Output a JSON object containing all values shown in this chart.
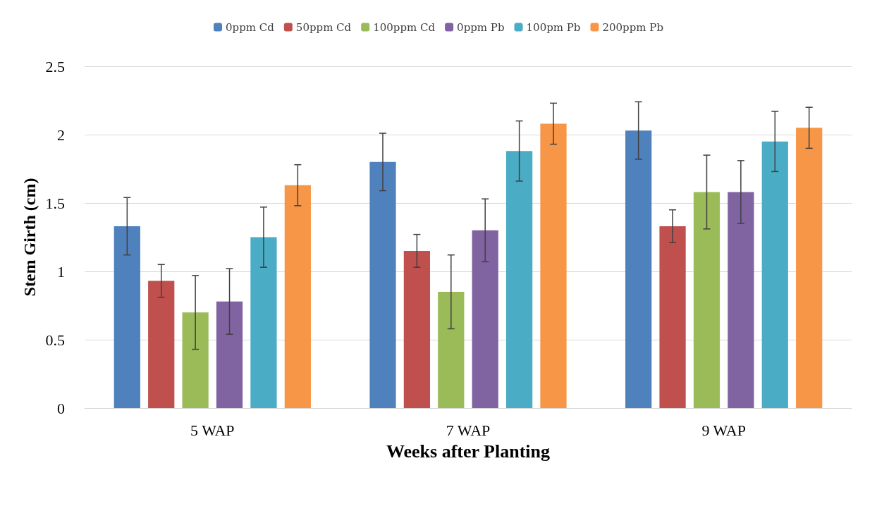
{
  "chart_data": {
    "type": "bar",
    "xlabel": "Weeks after Planting",
    "ylabel": "Stem Girth (cm)",
    "categories": [
      "5 WAP",
      "7 WAP",
      "9 WAP"
    ],
    "series": [
      {
        "name": "0ppm Cd",
        "color": "#4f81bd",
        "values": [
          1.33,
          1.8,
          2.03
        ],
        "errors": [
          0.21,
          0.21,
          0.21
        ]
      },
      {
        "name": "50ppm Cd",
        "color": "#c0504d",
        "values": [
          0.93,
          1.15,
          1.33
        ],
        "errors": [
          0.12,
          0.12,
          0.12
        ]
      },
      {
        "name": "100ppm Cd",
        "color": "#9bbb59",
        "values": [
          0.7,
          0.85,
          1.58
        ],
        "errors": [
          0.27,
          0.27,
          0.27
        ]
      },
      {
        "name": "0ppm Pb",
        "color": "#8064a2",
        "values": [
          0.78,
          1.3,
          1.58
        ],
        "errors": [
          0.24,
          0.23,
          0.23
        ]
      },
      {
        "name": "100pm Pb",
        "color": "#4bacc6",
        "values": [
          1.25,
          1.88,
          1.95
        ],
        "errors": [
          0.22,
          0.22,
          0.22
        ]
      },
      {
        "name": "200ppm Pb",
        "color": "#f79646",
        "values": [
          1.63,
          2.08,
          2.05
        ],
        "errors": [
          0.15,
          0.15,
          0.15
        ]
      }
    ],
    "ylim": [
      0,
      2.5
    ],
    "yticks": [
      0,
      0.5,
      1,
      1.5,
      2,
      2.5
    ],
    "grid": "y",
    "legend": "top"
  }
}
